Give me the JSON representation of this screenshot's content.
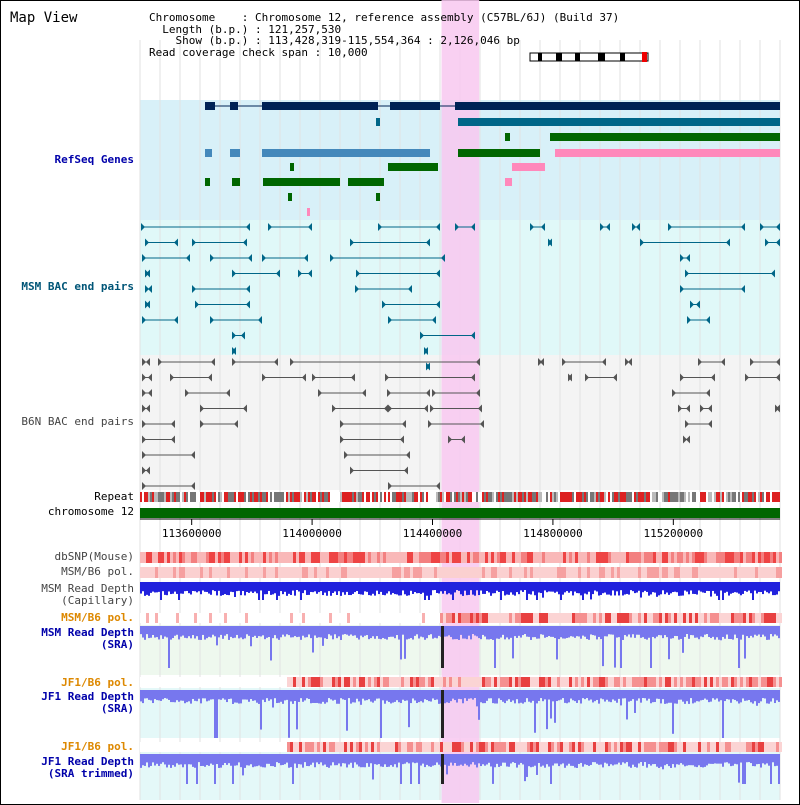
{
  "view_title": "Map View",
  "info": {
    "chromosome_key": "Chromosome",
    "chromosome_value": "Chromosome 12, reference assembly (C57BL/6J) (Build 37)",
    "length_key": "Length (b.p.)",
    "length_value": "121,257,530",
    "show_key": "Show (b.p.)",
    "show_value": "113,428,319-115,554,364 : 2,126,046 bp",
    "coverage_key": "Read coverage check span",
    "coverage_value": "10,000"
  },
  "tracks": {
    "refseq": "RefSeq Genes",
    "msm_bac": "MSM BAC end pairs",
    "b6n_bac": "B6N BAC end pairs",
    "repeat": "Repeat",
    "chromosome": "chromosome 12",
    "dbsnp": "dbSNP(Mouse)",
    "msm_b6_pol_1": "MSM/B6 pol.",
    "msm_depth_cap": "MSM Read Depth\n(Capillary)",
    "msm_b6_pol_2": "MSM/B6 pol.",
    "msm_depth_sra": "MSM Read Depth\n(SRA)",
    "jf1_b6_pol_1": "JF1/B6 pol.",
    "jf1_depth_sra": "JF1 Read Depth\n(SRA)",
    "jf1_b6_pol_2": "JF1/B6 pol.",
    "jf1_depth_trim": "JF1 Read Depth\n(SRA trimmed)"
  },
  "ruler_ticks": [
    {
      "label": "113600000",
      "pos": 113600000
    },
    {
      "label": "114000000",
      "pos": 114000000
    },
    {
      "label": "114400000",
      "pos": 114400000
    },
    {
      "label": "114800000",
      "pos": 114800000
    },
    {
      "label": "115200000",
      "pos": 115200000
    }
  ],
  "range": {
    "start": 113428319,
    "end": 115554364
  },
  "highlight": {
    "start": 114430000,
    "end": 114555000
  },
  "colors": {
    "refseq_label": "#0000aa",
    "msm_label": "#005577",
    "pol_label": "#dd8800",
    "depth_label": "#0000aa",
    "highlight": "#f8c8f0",
    "refseq_bg": "#d8f0f8",
    "msm_bg": "#e0f8f8",
    "chromosome_bar": "#006600",
    "navy": "#002255",
    "steel": "#4488bb",
    "green": "#006600",
    "pink": "#ff88bb",
    "teal": "#006688",
    "gray": "#555555",
    "blue": "#2222dd",
    "lightblue": "#7777ee"
  }
}
